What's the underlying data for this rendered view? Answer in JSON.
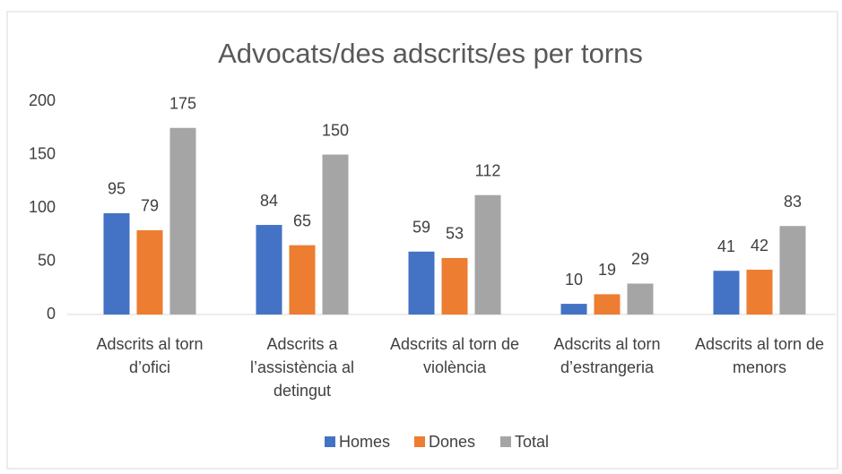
{
  "chart_data": {
    "type": "bar",
    "title": "Advocats/des adscrits/es per torns",
    "categories": [
      "Adscrits al torn d’ofici",
      "Adscrits a l’assistència al detingut",
      "Adscrits al torn de violència",
      "Adscrits al torn d’estrangeria",
      "Adscrits al torn de menors"
    ],
    "series": [
      {
        "name": "Homes",
        "color": "#4472c4",
        "values": [
          95,
          84,
          59,
          10,
          41
        ]
      },
      {
        "name": "Dones",
        "color": "#ed7d31",
        "values": [
          79,
          65,
          53,
          19,
          42
        ]
      },
      {
        "name": "Total",
        "color": "#a5a5a5",
        "values": [
          175,
          150,
          112,
          29,
          83
        ]
      }
    ],
    "ylim": [
      0,
      200
    ],
    "yticks": [
      0,
      50,
      100,
      150,
      200
    ],
    "grid": false,
    "legend": "bottom"
  }
}
